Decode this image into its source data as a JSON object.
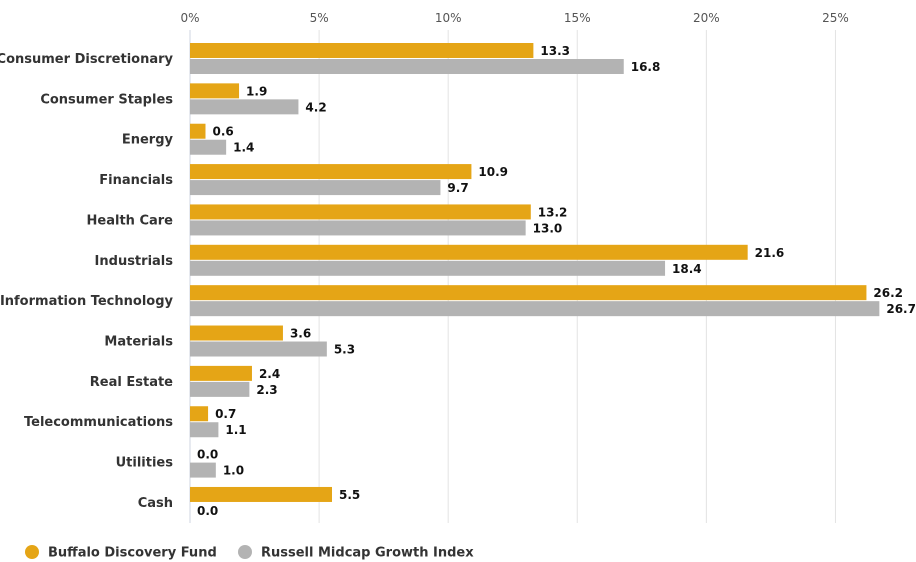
{
  "chart_data": {
    "type": "bar",
    "orientation": "horizontal",
    "categories": [
      "Consumer Discretionary",
      "Consumer Staples",
      "Energy",
      "Financials",
      "Health Care",
      "Industrials",
      "Information Technology",
      "Materials",
      "Real Estate",
      "Telecommunications",
      "Utilities",
      "Cash"
    ],
    "series": [
      {
        "name": "Buffalo Discovery Fund",
        "color": "#E5A516",
        "values": [
          13.3,
          1.9,
          0.6,
          10.9,
          13.2,
          21.6,
          26.2,
          3.6,
          2.4,
          0.7,
          0.0,
          5.5
        ],
        "labels": [
          "13.3",
          "1.9",
          "0.6",
          "10.9",
          "13.2",
          "21.6",
          "26.2",
          "3.6",
          "2.4",
          "0.7",
          "0.0",
          "5.5"
        ]
      },
      {
        "name": "Russell Midcap Growth Index",
        "color": "#B3B3B3",
        "values": [
          16.8,
          4.2,
          1.4,
          9.7,
          13.0,
          18.4,
          26.7,
          5.3,
          2.3,
          1.1,
          1.0,
          0.0
        ],
        "labels": [
          "16.8",
          "4.2",
          "1.4",
          "9.7",
          "13.0",
          "18.4",
          "26.7",
          "5.3",
          "2.3",
          "1.1",
          "1.0",
          "0.0"
        ]
      }
    ],
    "x_ticks": [
      0,
      5,
      10,
      15,
      20,
      25
    ],
    "x_tick_labels": [
      "0%",
      "5%",
      "10%",
      "15%",
      "20%",
      "25%"
    ],
    "xlim": [
      0,
      27.5
    ],
    "axis_position": "top",
    "grid": true,
    "legend_position": "bottom-left",
    "title": "",
    "xlabel": "",
    "ylabel": ""
  }
}
